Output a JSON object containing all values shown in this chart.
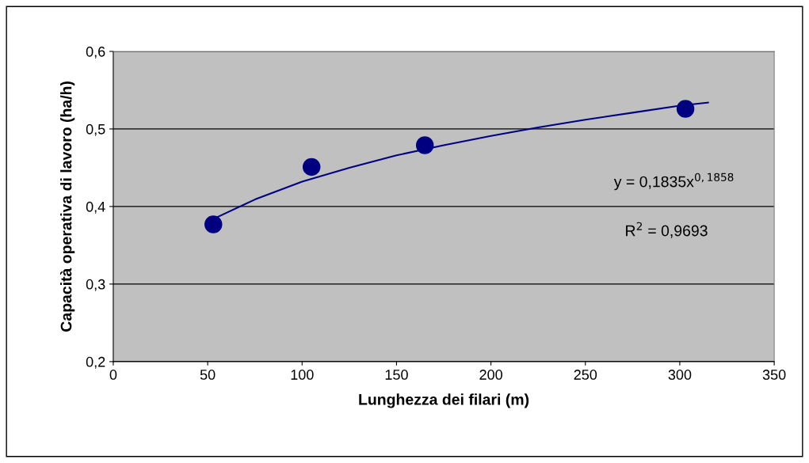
{
  "chart_data": {
    "type": "scatter",
    "xlabel": "Lunghezza dei filari (m)",
    "ylabel": "Capacità operativa di lavoro (ha/h)",
    "series": [
      {
        "color": "#000080",
        "marker": "circle",
        "x": [
          53,
          105,
          165,
          303
        ],
        "values": [
          0.377,
          0.451,
          0.479,
          0.526
        ]
      },
      {
        "type": "line",
        "color": "#000080",
        "marker": "none",
        "line_style": "solid",
        "x": [
          53,
          75,
          100,
          125,
          150,
          175,
          200,
          225,
          250,
          275,
          300,
          315
        ],
        "values": [
          0.384,
          0.409,
          0.432,
          0.45,
          0.466,
          0.479,
          0.491,
          0.502,
          0.512,
          0.521,
          0.53,
          0.534
        ]
      }
    ],
    "xlim": [
      0,
      350
    ],
    "xticks": [
      0,
      50,
      100,
      150,
      200,
      250,
      300,
      350
    ],
    "ylim": [
      0.2,
      0.6
    ],
    "yticks": [
      {
        "value": 0.2,
        "label": "0,2"
      },
      {
        "value": 0.3,
        "label": "0,3"
      },
      {
        "value": 0.4,
        "label": "0,4"
      },
      {
        "value": 0.5,
        "label": "0,5"
      },
      {
        "value": 0.6,
        "label": "0,6"
      }
    ],
    "grid": "y",
    "legend": false,
    "annotations": [
      "y = 0,1835x$^{0,1858}$",
      "R$^{2}$ = 0,9693"
    ]
  }
}
